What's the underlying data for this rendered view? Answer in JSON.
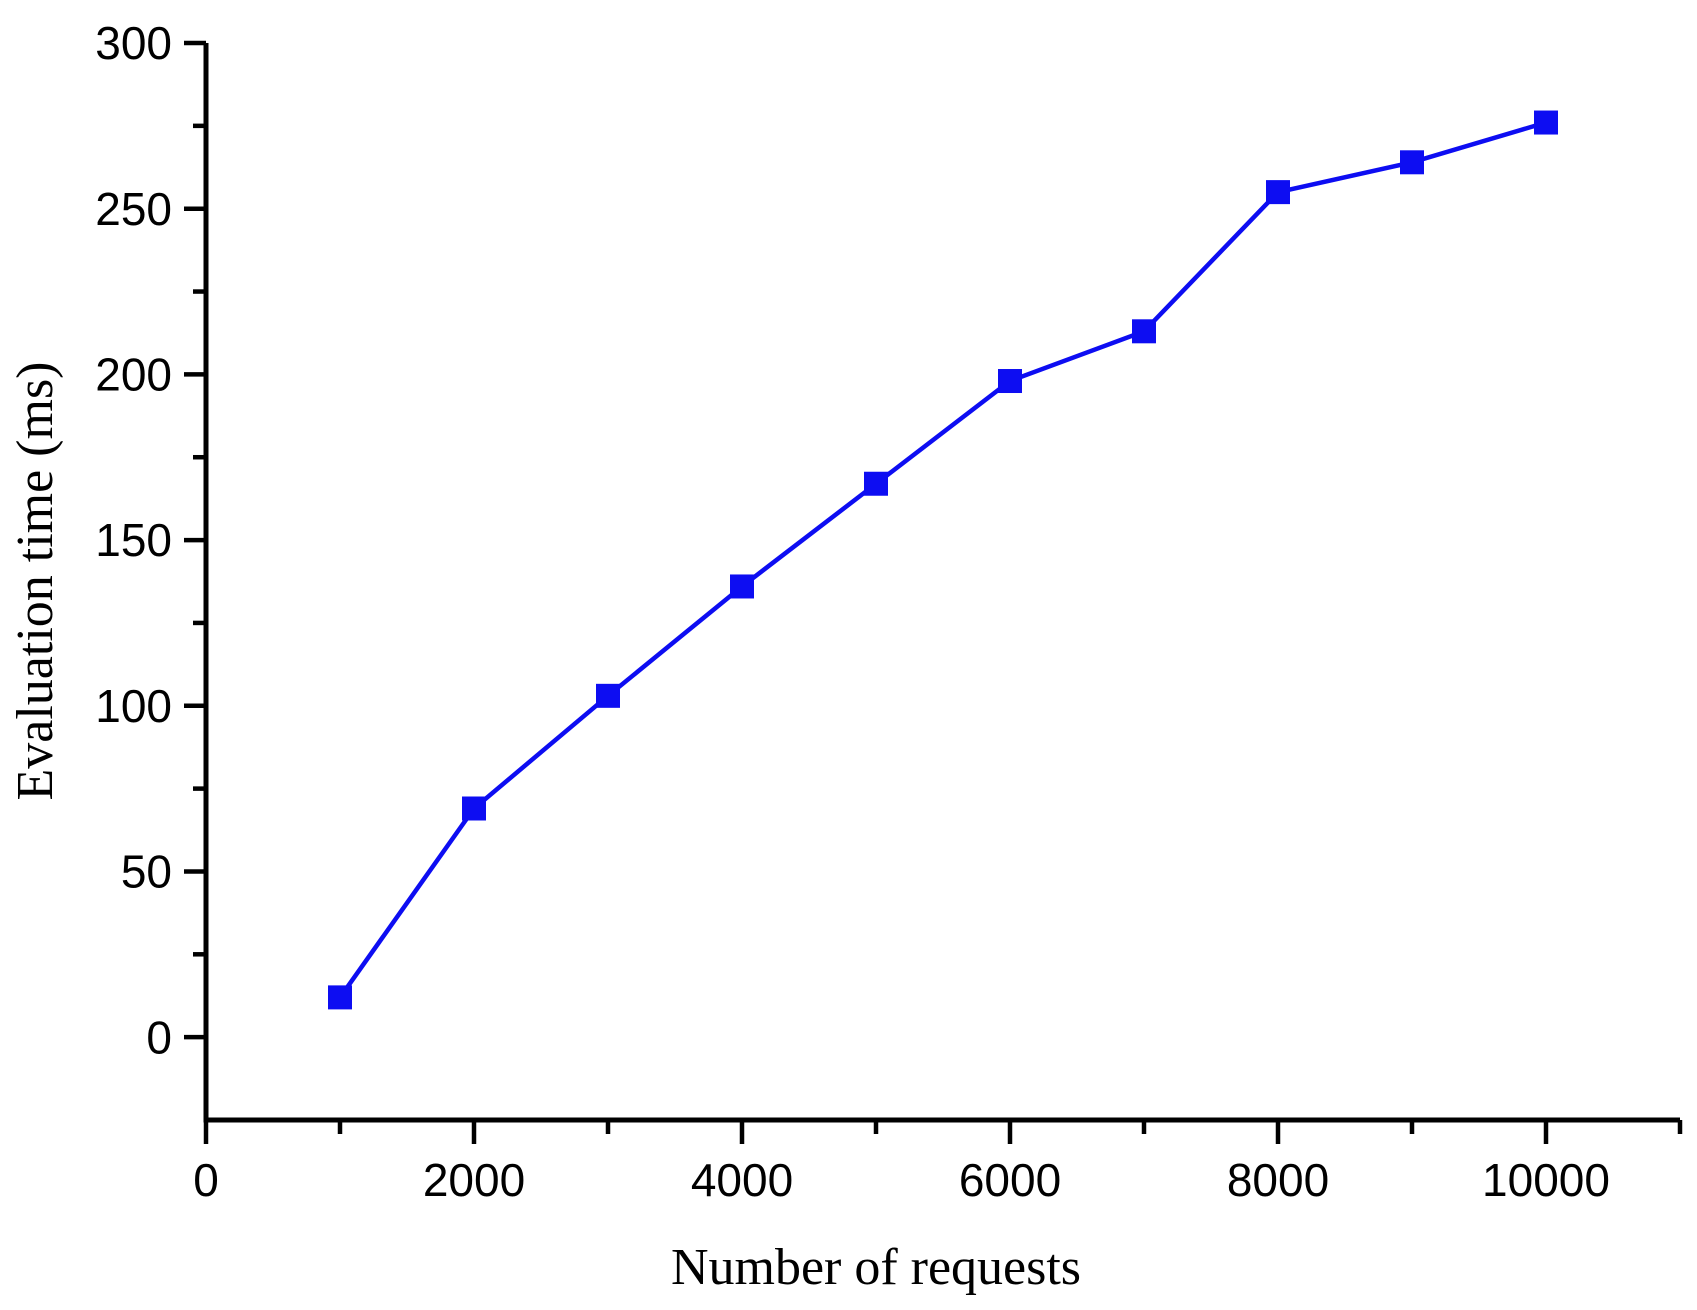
{
  "chart_data": {
    "type": "line",
    "title": "",
    "xlabel": "Number of requests",
    "ylabel": "Evaluation time (ms)",
    "x": [
      1000,
      2000,
      3000,
      4000,
      5000,
      6000,
      7000,
      8000,
      9000,
      10000
    ],
    "series": [
      {
        "name": "Evaluation time",
        "values": [
          12,
          69,
          103,
          136,
          167,
          198,
          213,
          255,
          264,
          276
        ]
      }
    ],
    "xlim": [
      0,
      11000
    ],
    "ylim": [
      -25,
      300
    ],
    "x_ticks_major": [
      0,
      2000,
      4000,
      6000,
      8000,
      10000
    ],
    "x_ticks_minor": [
      1000,
      3000,
      5000,
      7000,
      9000,
      11000
    ],
    "y_ticks_major": [
      0,
      50,
      100,
      150,
      200,
      250,
      300
    ],
    "y_ticks_minor": [
      25,
      75,
      125,
      175,
      225,
      275
    ],
    "grid": false,
    "legend_position": "none",
    "line_color": "#0d0df2",
    "marker": "square",
    "marker_color": "#0d0df2",
    "axis_color": "#000000"
  }
}
